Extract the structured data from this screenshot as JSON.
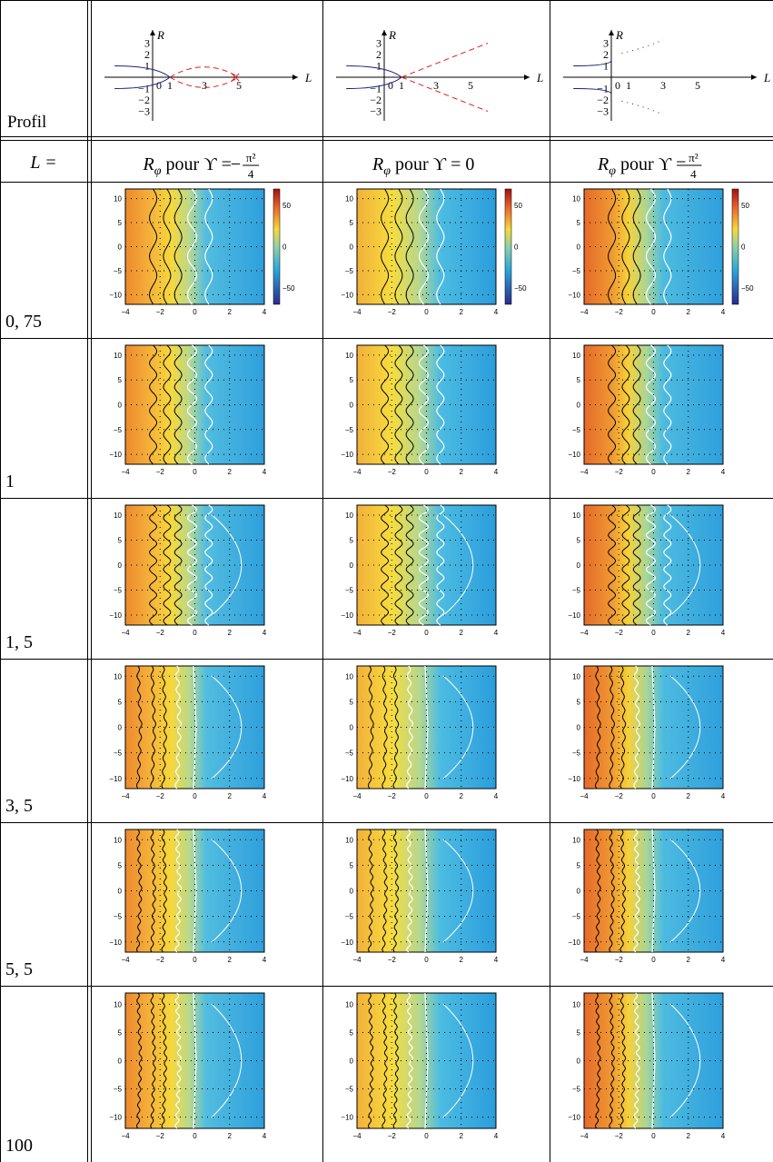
{
  "header": {
    "profile_label": "Profil",
    "row_header": "L =",
    "column_headers": [
      {
        "symbol": "R",
        "subscript": "φ",
        "text": "pour ϒ =",
        "sign": "−",
        "numerator": "π²",
        "denominator": "4"
      },
      {
        "symbol": "R",
        "subscript": "φ",
        "text": "pour ϒ = 0"
      },
      {
        "symbol": "R",
        "subscript": "φ",
        "text": "pour ϒ =",
        "numerator": "π²",
        "denominator": "4"
      }
    ]
  },
  "profile_axes": {
    "r_label": "R",
    "l_label": "L",
    "r_ticks": [
      "3",
      "2",
      "1",
      "−1",
      "−2",
      "−3"
    ],
    "r_tick_values": [
      3,
      2,
      1,
      -1,
      -2,
      -3
    ],
    "l_ticks": [
      "0",
      "1",
      "3",
      "5"
    ],
    "l_tick_values": [
      0,
      1,
      3,
      5
    ]
  },
  "rows": [
    {
      "label": "0, 75"
    },
    {
      "label": "1"
    },
    {
      "label": "1, 5"
    },
    {
      "label": "3, 5"
    },
    {
      "label": "5, 5"
    },
    {
      "label": "100"
    }
  ],
  "plot_axes": {
    "x_ticks": [
      "−4",
      "−2",
      "0",
      "2",
      "4"
    ],
    "x_tick_values": [
      -4,
      -2,
      0,
      2,
      4
    ],
    "y_ticks": [
      "10",
      "5",
      "0",
      "−5",
      "−10"
    ],
    "y_tick_values": [
      10,
      5,
      0,
      -5,
      -10
    ],
    "colorbar_ticks": [
      "50",
      "0",
      "−50"
    ],
    "colorbar_tick_values": [
      50,
      0,
      -50
    ]
  }
}
